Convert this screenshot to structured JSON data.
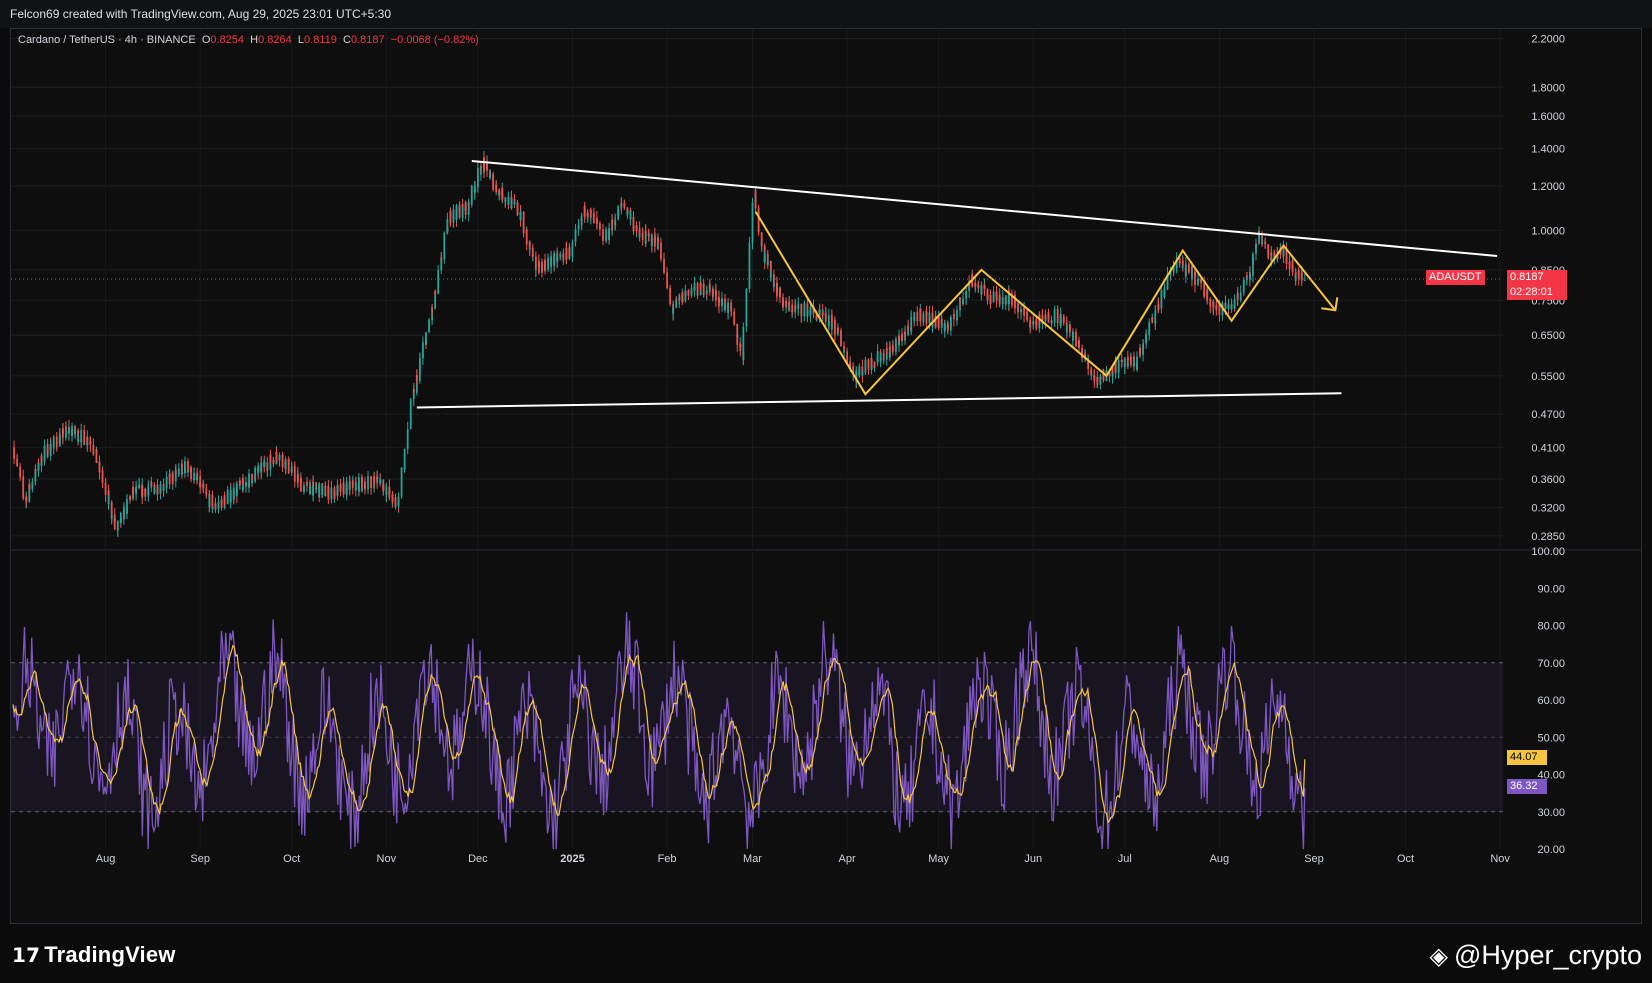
{
  "header": {
    "attribution": "Felcon69 created with TradingView.com, Aug 29, 2025 23:01 UTC+5:30"
  },
  "legend": {
    "symbol": "Cardano / TetherUS · 4h · BINANCE",
    "open_label": "O",
    "open": "0.8254",
    "high_label": "H",
    "high": "0.8264",
    "low_label": "L",
    "low": "0.8119",
    "close_label": "C",
    "close": "0.8187",
    "change": "−0.0068 (−0.82%)"
  },
  "price_tag": {
    "ticker": "ADAUSDT",
    "price": "0.8187",
    "countdown": "02:28:01",
    "color": "#f23645"
  },
  "rsi_tags": {
    "ma_value": "44.07",
    "rsi_value": "36.32",
    "ma_color": "#f5c542",
    "rsi_color": "#7e57c2"
  },
  "footer": {
    "brand": "TradingView",
    "watermark": "@Hyper_crypto"
  },
  "colors": {
    "up": "#26a69a",
    "down": "#ef5350",
    "trendline": "#ffffff",
    "zigzag": "#f5c542",
    "rsi": "#7e57c2",
    "rsi_ma": "#f5c542"
  },
  "chart_data": [
    {
      "type": "candlestick",
      "symbol": "ADAUSDT",
      "interval": "4h",
      "y_scale": "log",
      "ylim": [
        0.27,
        2.25
      ],
      "y_ticks": [
        "2.2000",
        "1.8000",
        "1.6000",
        "1.4000",
        "1.2000",
        "1.0000",
        "0.8500",
        "0.7500",
        "0.6500",
        "0.5500",
        "0.4700",
        "0.4100",
        "0.3600",
        "0.3200",
        "0.2850"
      ],
      "x_ticks": [
        "Aug",
        "Sep",
        "Oct",
        "Nov",
        "Dec",
        "2025",
        "Feb",
        "Mar",
        "Apr",
        "May",
        "Jun",
        "Jul",
        "Aug",
        "Sep",
        "Oct",
        "Nov"
      ],
      "x_tick_dates": [
        "2024-08-01",
        "2024-09-01",
        "2024-10-01",
        "2024-11-01",
        "2024-12-01",
        "2025-01-01",
        "2025-02-01",
        "2025-03-01",
        "2025-04-01",
        "2025-05-01",
        "2025-06-01",
        "2025-07-01",
        "2025-08-01",
        "2025-09-01",
        "2025-10-01",
        "2025-11-01"
      ],
      "price_path": [
        [
          "2024-07-02",
          0.41
        ],
        [
          "2024-07-06",
          0.33
        ],
        [
          "2024-07-12",
          0.4
        ],
        [
          "2024-07-20",
          0.44
        ],
        [
          "2024-07-28",
          0.42
        ],
        [
          "2024-08-05",
          0.29
        ],
        [
          "2024-08-10",
          0.34
        ],
        [
          "2024-08-20",
          0.35
        ],
        [
          "2024-08-28",
          0.38
        ],
        [
          "2024-09-06",
          0.32
        ],
        [
          "2024-09-15",
          0.35
        ],
        [
          "2024-09-27",
          0.4
        ],
        [
          "2024-10-05",
          0.35
        ],
        [
          "2024-10-14",
          0.34
        ],
        [
          "2024-10-22",
          0.35
        ],
        [
          "2024-10-30",
          0.36
        ],
        [
          "2024-11-05",
          0.32
        ],
        [
          "2024-11-10",
          0.5
        ],
        [
          "2024-11-13",
          0.6
        ],
        [
          "2024-11-17",
          0.74
        ],
        [
          "2024-11-22",
          1.06
        ],
        [
          "2024-11-28",
          1.1
        ],
        [
          "2024-12-03",
          1.32
        ],
        [
          "2024-12-08",
          1.18
        ],
        [
          "2024-12-15",
          1.08
        ],
        [
          "2024-12-20",
          0.86
        ],
        [
          "2024-12-26",
          0.88
        ],
        [
          "2025-01-01",
          0.92
        ],
        [
          "2025-01-06",
          1.1
        ],
        [
          "2025-01-12",
          0.96
        ],
        [
          "2025-01-18",
          1.12
        ],
        [
          "2025-01-23",
          0.98
        ],
        [
          "2025-01-30",
          0.95
        ],
        [
          "2025-02-03",
          0.72
        ],
        [
          "2025-02-08",
          0.78
        ],
        [
          "2025-02-15",
          0.79
        ],
        [
          "2025-02-22",
          0.72
        ],
        [
          "2025-02-26",
          0.6
        ],
        [
          "2025-03-02",
          1.18
        ],
        [
          "2025-03-05",
          0.9
        ],
        [
          "2025-03-12",
          0.73
        ],
        [
          "2025-03-20",
          0.72
        ],
        [
          "2025-03-28",
          0.68
        ],
        [
          "2025-04-04",
          0.55
        ],
        [
          "2025-04-09",
          0.58
        ],
        [
          "2025-04-17",
          0.62
        ],
        [
          "2025-04-25",
          0.71
        ],
        [
          "2025-05-05",
          0.67
        ],
        [
          "2025-05-12",
          0.82
        ],
        [
          "2025-05-18",
          0.76
        ],
        [
          "2025-05-25",
          0.76
        ],
        [
          "2025-06-01",
          0.68
        ],
        [
          "2025-06-09",
          0.71
        ],
        [
          "2025-06-15",
          0.64
        ],
        [
          "2025-06-22",
          0.54
        ],
        [
          "2025-06-28",
          0.57
        ],
        [
          "2025-07-05",
          0.58
        ],
        [
          "2025-07-11",
          0.7
        ],
        [
          "2025-07-18",
          0.88
        ],
        [
          "2025-07-24",
          0.83
        ],
        [
          "2025-08-01",
          0.72
        ],
        [
          "2025-08-06",
          0.74
        ],
        [
          "2025-08-11",
          0.82
        ],
        [
          "2025-08-14",
          0.99
        ],
        [
          "2025-08-18",
          0.9
        ],
        [
          "2025-08-22",
          0.93
        ],
        [
          "2025-08-26",
          0.84
        ],
        [
          "2025-08-29",
          0.8187
        ]
      ]
    },
    {
      "type": "trendlines",
      "lines": [
        {
          "name": "descending-resistance",
          "from": [
            "2024-11-29",
            1.33
          ],
          "to": [
            "2025-10-31",
            0.9
          ]
        },
        {
          "name": "horizontal-support",
          "from": [
            "2024-11-11",
            0.483
          ],
          "to": [
            "2025-09-10",
            0.512
          ]
        }
      ],
      "zigzag_points": [
        [
          "2025-03-02",
          1.08
        ],
        [
          "2025-04-07",
          0.51
        ],
        [
          "2025-05-15",
          0.85
        ],
        [
          "2025-06-25",
          0.55
        ],
        [
          "2025-07-20",
          0.92
        ],
        [
          "2025-08-05",
          0.69
        ],
        [
          "2025-08-22",
          0.94
        ]
      ],
      "projection_arrow": {
        "from": [
          "2025-08-22",
          0.94
        ],
        "to": [
          "2025-09-08",
          0.72
        ]
      }
    },
    {
      "type": "line",
      "name": "RSI",
      "ylim": [
        20,
        100
      ],
      "y_ticks": [
        "100.00",
        "90.00",
        "80.00",
        "70.00",
        "60.00",
        "50.00",
        "40.00",
        "30.00",
        "20.00"
      ],
      "bands": {
        "upper": 70,
        "middle": 50,
        "lower": 30
      },
      "last_rsi": 36.32,
      "last_ma": 44.07
    }
  ]
}
